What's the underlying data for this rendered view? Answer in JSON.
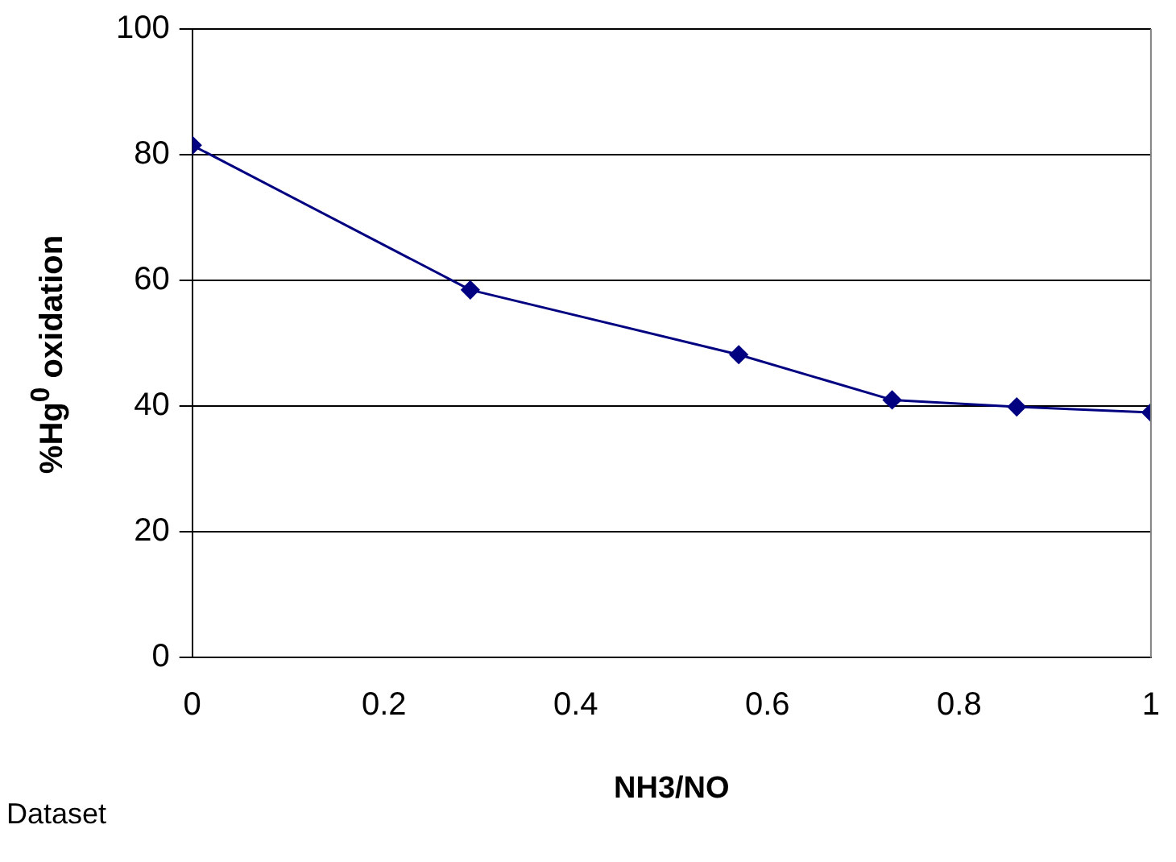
{
  "chart_data": {
    "type": "line",
    "xlabel": "NH3/NO",
    "ylabel": "%Hg$^{0}$ oxidation",
    "x": [
      0,
      0.29,
      0.57,
      0.73,
      0.86,
      1.0
    ],
    "series": [
      {
        "color": "#000080",
        "values": [
          81.5,
          58.5,
          48.2,
          41.0,
          39.9,
          39.0
        ]
      }
    ],
    "xlim": [
      0,
      1
    ],
    "xticks": [
      0,
      0.2,
      0.4,
      0.6,
      0.8,
      1
    ],
    "ylim": [
      0,
      100
    ],
    "yticks": [
      0,
      20,
      40,
      60,
      80,
      100
    ],
    "grid": "y",
    "legend": false,
    "marker": "diamond",
    "line_style": "solid",
    "annotations": [
      "Dataset"
    ]
  }
}
